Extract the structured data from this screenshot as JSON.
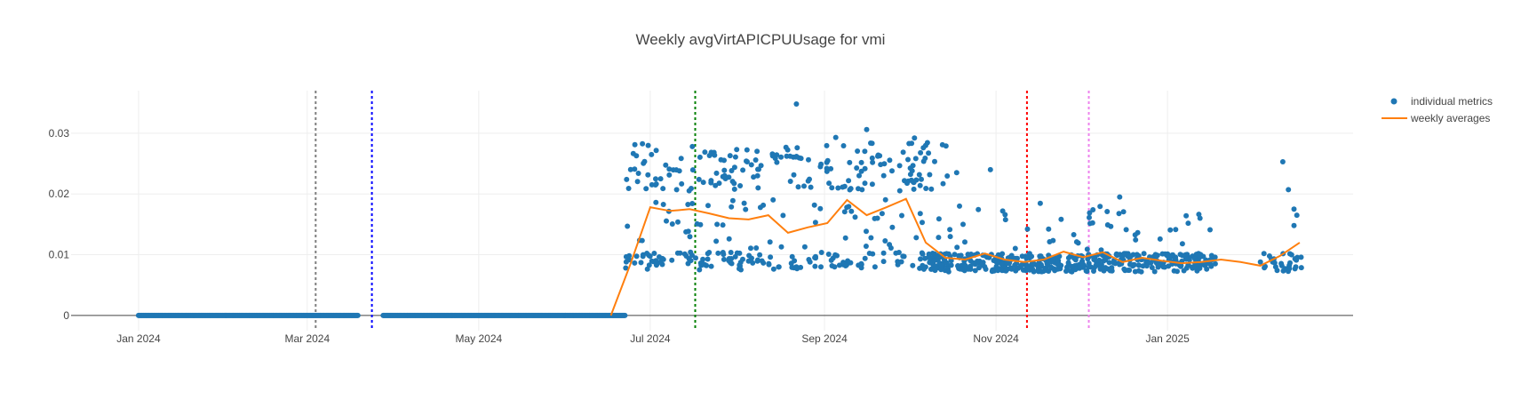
{
  "chart_data": {
    "type": "scatter",
    "title": "Weekly avgVirtAPICPUUsage for vmi",
    "xlabel": "",
    "ylabel": "",
    "x_ticks": [
      "Jan 2024",
      "Mar 2024",
      "May 2024",
      "Jul 2024",
      "Sep 2024",
      "Nov 2024",
      "Jan 2025"
    ],
    "y_ticks": [
      "0",
      "0.01",
      "0.02",
      "0.03"
    ],
    "ylim": [
      -0.0025,
      0.037
    ],
    "xlim": [
      "2023-12-08",
      "2025-03-08"
    ],
    "grid": true,
    "legend_position": "top-right",
    "colors": {
      "individual": "#1f77b4",
      "weekly": "#ff7f0e",
      "grid": "#eeeeee",
      "zero_line": "#444444"
    },
    "series": [
      {
        "name": "individual metrics",
        "mode": "markers",
        "segments": [
          {
            "x_start": "2024-01-01",
            "x_end": "2024-03-19",
            "y": 0,
            "step_hours": 6
          },
          {
            "x_start": "2024-03-28",
            "x_end": "2024-06-22",
            "y": 0,
            "step_hours": 6
          }
        ],
        "clusters": [
          {
            "x_start": "2024-06-22",
            "x_end": "2024-10-15",
            "count": 180,
            "y_low": 0.0205,
            "y_high": 0.0285
          },
          {
            "x_start": "2024-06-22",
            "x_end": "2024-10-15",
            "count": 160,
            "y_low": 0.0075,
            "y_high": 0.0105
          },
          {
            "x_start": "2024-06-22",
            "x_end": "2024-10-15",
            "count": 60,
            "y_low": 0.011,
            "y_high": 0.0195
          },
          {
            "x_start": "2024-10-08",
            "x_end": "2025-01-18",
            "count": 420,
            "y_low": 0.0072,
            "y_high": 0.0102
          },
          {
            "x_start": "2024-10-15",
            "x_end": "2025-01-18",
            "count": 45,
            "y_low": 0.0105,
            "y_high": 0.0185
          },
          {
            "x_start": "2025-02-03",
            "x_end": "2025-02-18",
            "count": 30,
            "y_low": 0.0072,
            "y_high": 0.0102
          }
        ],
        "points": [
          {
            "x": "2024-08-22",
            "y": 0.0348
          },
          {
            "x": "2024-09-16",
            "y": 0.0306
          },
          {
            "x": "2024-09-05",
            "y": 0.0293
          },
          {
            "x": "2024-10-03",
            "y": 0.0292
          },
          {
            "x": "2024-07-16",
            "y": 0.0278
          },
          {
            "x": "2024-10-18",
            "y": 0.0235
          },
          {
            "x": "2024-10-30",
            "y": 0.024
          },
          {
            "x": "2024-10-19",
            "y": 0.018
          },
          {
            "x": "2024-12-15",
            "y": 0.0195
          },
          {
            "x": "2025-02-11",
            "y": 0.0253
          },
          {
            "x": "2025-02-13",
            "y": 0.0207
          },
          {
            "x": "2025-02-15",
            "y": 0.0175
          },
          {
            "x": "2025-02-16",
            "y": 0.0165
          },
          {
            "x": "2025-02-15",
            "y": 0.0148
          }
        ]
      },
      {
        "name": "weekly averages",
        "mode": "lines",
        "points": [
          {
            "x": "2024-06-17",
            "y": 0
          },
          {
            "x": "2024-06-24",
            "y": 0.0085
          },
          {
            "x": "2024-07-01",
            "y": 0.0178
          },
          {
            "x": "2024-07-08",
            "y": 0.0172
          },
          {
            "x": "2024-07-15",
            "y": 0.0175
          },
          {
            "x": "2024-07-22",
            "y": 0.0168
          },
          {
            "x": "2024-07-29",
            "y": 0.016
          },
          {
            "x": "2024-08-05",
            "y": 0.0158
          },
          {
            "x": "2024-08-12",
            "y": 0.0165
          },
          {
            "x": "2024-08-19",
            "y": 0.0136
          },
          {
            "x": "2024-08-26",
            "y": 0.0145
          },
          {
            "x": "2024-09-02",
            "y": 0.0152
          },
          {
            "x": "2024-09-09",
            "y": 0.019
          },
          {
            "x": "2024-09-16",
            "y": 0.0165
          },
          {
            "x": "2024-09-23",
            "y": 0.0178
          },
          {
            "x": "2024-09-30",
            "y": 0.0192
          },
          {
            "x": "2024-10-07",
            "y": 0.012
          },
          {
            "x": "2024-10-14",
            "y": 0.0095
          },
          {
            "x": "2024-10-21",
            "y": 0.0092
          },
          {
            "x": "2024-10-28",
            "y": 0.0102
          },
          {
            "x": "2024-11-04",
            "y": 0.0092
          },
          {
            "x": "2024-11-11",
            "y": 0.0088
          },
          {
            "x": "2024-11-18",
            "y": 0.0092
          },
          {
            "x": "2024-11-25",
            "y": 0.0105
          },
          {
            "x": "2024-12-02",
            "y": 0.0096
          },
          {
            "x": "2024-12-09",
            "y": 0.0104
          },
          {
            "x": "2024-12-16",
            "y": 0.0088
          },
          {
            "x": "2024-12-23",
            "y": 0.0095
          },
          {
            "x": "2024-12-30",
            "y": 0.009
          },
          {
            "x": "2025-01-06",
            "y": 0.0086
          },
          {
            "x": "2025-01-13",
            "y": 0.0088
          },
          {
            "x": "2025-01-20",
            "y": 0.0092
          },
          {
            "x": "2025-01-27",
            "y": 0.0088
          },
          {
            "x": "2025-02-03",
            "y": 0.0082
          },
          {
            "x": "2025-02-10",
            "y": 0.0098
          },
          {
            "x": "2025-02-17",
            "y": 0.012
          }
        ]
      }
    ],
    "vertical_lines": [
      {
        "x": "2024-03-04",
        "color": "#7f7f7f"
      },
      {
        "x": "2024-03-24",
        "color": "#0000ff"
      },
      {
        "x": "2024-07-17",
        "color": "#008000"
      },
      {
        "x": "2024-11-12",
        "color": "#ff0000"
      },
      {
        "x": "2024-12-04",
        "color": "#ee82ee"
      }
    ]
  }
}
